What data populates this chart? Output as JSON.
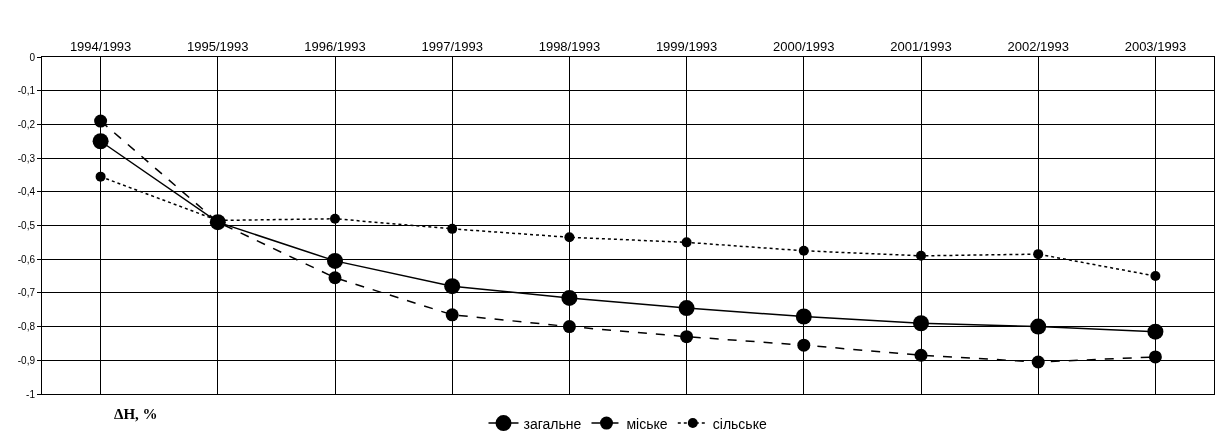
{
  "chart_data": {
    "type": "line",
    "annotations": [
      "ΔH, %"
    ],
    "categories": [
      "1994/1993",
      "1995/1993",
      "1996/1993",
      "1997/1993",
      "1998/1993",
      "1999/1993",
      "2000/1993",
      "2001/1993",
      "2002/1993",
      "2003/1993"
    ],
    "series": [
      {
        "name": "загальне",
        "color": "#000000",
        "line_style": "solid",
        "values": [
          -0.25,
          -0.49,
          -0.605,
          -0.68,
          -0.715,
          -0.745,
          -0.77,
          -0.79,
          -0.8,
          -0.815
        ]
      },
      {
        "name": "міське",
        "color": "#000000",
        "line_style": "dashed",
        "values": [
          -0.19,
          -0.49,
          -0.655,
          -0.765,
          -0.8,
          -0.83,
          -0.855,
          -0.885,
          -0.905,
          -0.89
        ]
      },
      {
        "name": "сільське",
        "color": "#000000",
        "line_style": "dotted",
        "values": [
          -0.355,
          -0.485,
          -0.48,
          -0.51,
          -0.535,
          -0.55,
          -0.575,
          -0.59,
          -0.585,
          -0.65
        ]
      }
    ],
    "ylim": [
      -1,
      0
    ],
    "yticks": [
      {
        "value": 0,
        "label": "0"
      },
      {
        "value": -0.1,
        "label": "-0,1"
      },
      {
        "value": -0.2,
        "label": "-0,2"
      },
      {
        "value": -0.3,
        "label": "-0,3"
      },
      {
        "value": -0.4,
        "label": "-0,4"
      },
      {
        "value": -0.5,
        "label": "-0,5"
      },
      {
        "value": -0.6,
        "label": "-0,6"
      },
      {
        "value": -0.7,
        "label": "-0,7"
      },
      {
        "value": -0.8,
        "label": "-0,8"
      },
      {
        "value": -0.9,
        "label": "-0,9"
      },
      {
        "value": -1,
        "label": "-1"
      }
    ],
    "grid": true,
    "legend": "bottom",
    "marker": "circle"
  }
}
